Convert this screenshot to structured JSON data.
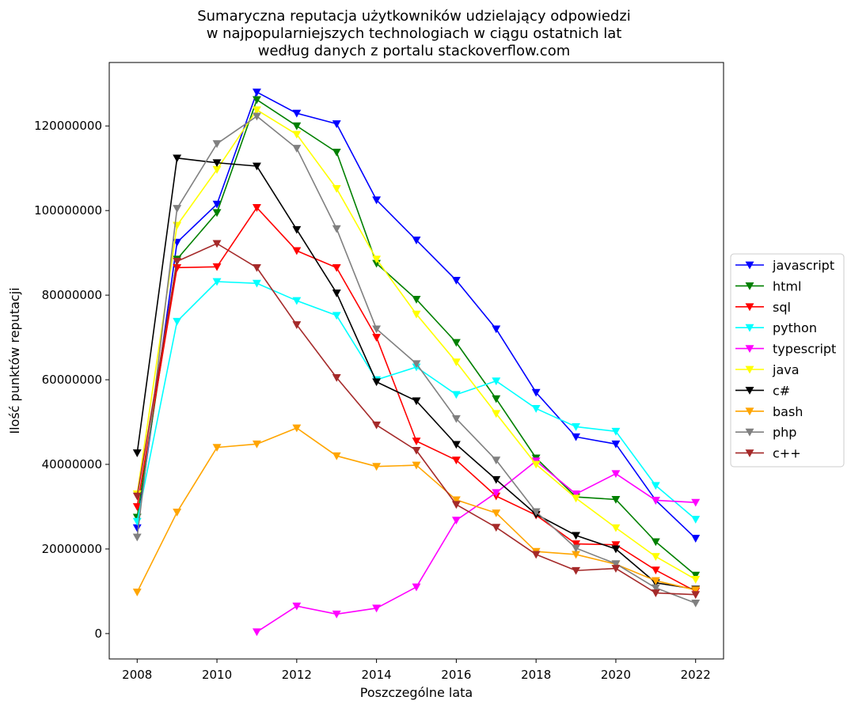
{
  "chart_data": {
    "type": "line",
    "title_lines": [
      "Sumaryczna reputacja użytkowników udzielający odpowiedzi",
      "w najpopularniejszych technologiach w ciągu ostatnich lat",
      "według danych z portalu stackoverflow.com"
    ],
    "xlabel": "Poszczególne lata",
    "ylabel": "Ilość punktów reputacji",
    "x": [
      2008,
      2009,
      2010,
      2011,
      2012,
      2013,
      2014,
      2015,
      2016,
      2017,
      2018,
      2019,
      2020,
      2021,
      2022
    ],
    "xticks": [
      "2008",
      "2010",
      "2012",
      "2014",
      "2016",
      "2018",
      "2020",
      "2022"
    ],
    "yticks": [
      "0",
      "20000000",
      "40000000",
      "60000000",
      "80000000",
      "100000000",
      "120000000"
    ],
    "xlim": [
      2007.3,
      2022.7
    ],
    "ylim": [
      -6000000,
      135000000
    ],
    "grid": false,
    "legend_position": "right",
    "marker": "triangle-down",
    "series": [
      {
        "name": "javascript",
        "color": "#0000ff",
        "values": [
          25000000,
          92500000,
          101500000,
          128000000,
          123000000,
          120500000,
          102500000,
          93000000,
          83500000,
          72000000,
          57000000,
          46500000,
          44800000,
          31500000,
          22500000
        ]
      },
      {
        "name": "html",
        "color": "#008000",
        "values": [
          27500000,
          88500000,
          99500000,
          126200000,
          120000000,
          113800000,
          87500000,
          79000000,
          68800000,
          55500000,
          41500000,
          32300000,
          31700000,
          21700000,
          13800000
        ]
      },
      {
        "name": "sql",
        "color": "#ff0000",
        "values": [
          30000000,
          86500000,
          86700000,
          100700000,
          90500000,
          86500000,
          70000000,
          45500000,
          41000000,
          32500000,
          28000000,
          21200000,
          21000000,
          15000000,
          10000000
        ]
      },
      {
        "name": "python",
        "color": "#00ffff",
        "values": [
          26500000,
          73800000,
          83200000,
          82800000,
          78700000,
          75200000,
          60000000,
          63000000,
          56500000,
          59700000,
          53200000,
          48900000,
          47800000,
          35000000,
          27000000
        ]
      },
      {
        "name": "typescript",
        "color": "#ff00ff",
        "values": [
          null,
          null,
          null,
          400000,
          6500000,
          4600000,
          6000000,
          11000000,
          26800000,
          33300000,
          40800000,
          33000000,
          37800000,
          31500000,
          31000000
        ]
      },
      {
        "name": "java",
        "color": "#ffff00",
        "values": [
          33000000,
          96500000,
          109700000,
          123800000,
          118000000,
          105200000,
          88500000,
          75500000,
          64200000,
          52000000,
          40000000,
          32000000,
          25000000,
          18200000,
          12800000
        ]
      },
      {
        "name": "c#",
        "color": "#000000",
        "values": [
          42700000,
          112400000,
          111300000,
          110500000,
          95500000,
          80500000,
          59500000,
          55000000,
          44700000,
          36400000,
          28200000,
          23200000,
          20000000,
          12000000,
          10500000
        ]
      },
      {
        "name": "bash",
        "color": "#ffa500",
        "values": [
          9800000,
          28700000,
          44000000,
          44800000,
          48600000,
          42000000,
          39500000,
          39800000,
          31600000,
          28500000,
          19400000,
          18700000,
          16400000,
          12500000,
          10300000
        ]
      },
      {
        "name": "php",
        "color": "#808080",
        "values": [
          22800000,
          100500000,
          115800000,
          122300000,
          114700000,
          95700000,
          72000000,
          63800000,
          50800000,
          41000000,
          28800000,
          20200000,
          16500000,
          10800000,
          7200000
        ]
      },
      {
        "name": "c++",
        "color": "#a52a2a",
        "values": [
          32500000,
          88000000,
          92200000,
          86500000,
          73000000,
          60500000,
          49300000,
          43300000,
          30500000,
          25100000,
          18700000,
          14900000,
          15400000,
          9600000,
          9200000
        ]
      }
    ]
  }
}
